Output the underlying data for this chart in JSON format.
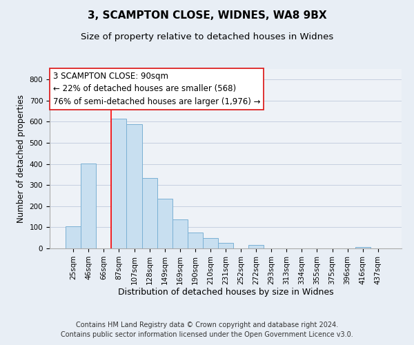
{
  "title": "3, SCAMPTON CLOSE, WIDNES, WA8 9BX",
  "subtitle": "Size of property relative to detached houses in Widnes",
  "xlabel": "Distribution of detached houses by size in Widnes",
  "ylabel": "Number of detached properties",
  "bar_labels": [
    "25sqm",
    "46sqm",
    "66sqm",
    "87sqm",
    "107sqm",
    "128sqm",
    "149sqm",
    "169sqm",
    "190sqm",
    "210sqm",
    "231sqm",
    "252sqm",
    "272sqm",
    "293sqm",
    "313sqm",
    "334sqm",
    "355sqm",
    "375sqm",
    "396sqm",
    "416sqm",
    "437sqm"
  ],
  "bar_heights": [
    106,
    403,
    0,
    616,
    590,
    332,
    237,
    136,
    75,
    49,
    25,
    0,
    15,
    0,
    0,
    0,
    0,
    0,
    0,
    7,
    0
  ],
  "bar_color": "#c8dff0",
  "bar_edge_color": "#7ab0d4",
  "vline_x_index": 3,
  "annotation_text_line1": "3 SCAMPTON CLOSE: 90sqm",
  "annotation_text_line2": "← 22% of detached houses are smaller (568)",
  "annotation_text_line3": "76% of semi-detached houses are larger (1,976) →",
  "ylim": [
    0,
    850
  ],
  "yticks": [
    0,
    100,
    200,
    300,
    400,
    500,
    600,
    700,
    800
  ],
  "footer_line1": "Contains HM Land Registry data © Crown copyright and database right 2024.",
  "footer_line2": "Contains public sector information licensed under the Open Government Licence v3.0.",
  "background_color": "#e8eef5",
  "plot_background": "#eef2f7",
  "grid_color": "#c5cfe0",
  "title_fontsize": 11,
  "subtitle_fontsize": 9.5,
  "xlabel_fontsize": 9,
  "ylabel_fontsize": 8.5,
  "tick_fontsize": 7.5,
  "footer_fontsize": 7,
  "ann_box_color": "#dd2222",
  "ann_fontsize": 8.5
}
